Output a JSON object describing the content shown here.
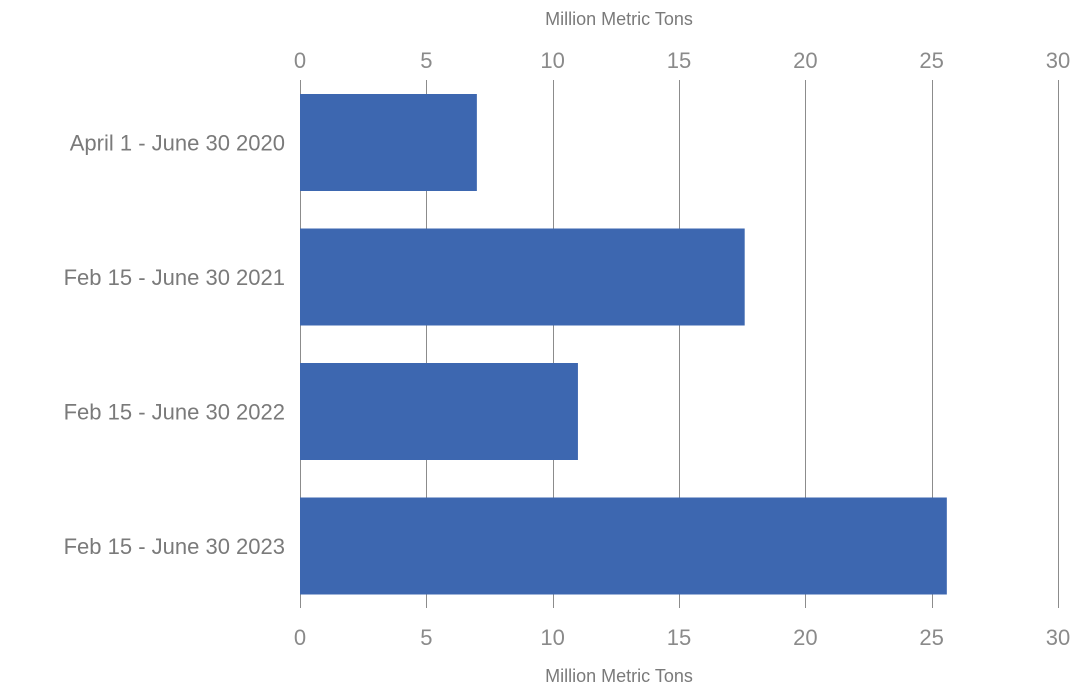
{
  "chart_data": {
    "type": "bar",
    "orientation": "horizontal",
    "categories": [
      "April 1 - June 30 2020",
      "Feb 15 - June 30 2021",
      "Feb 15 - June 30 2022",
      "Feb 15 - June 30 2023"
    ],
    "values": [
      7.0,
      17.6,
      11.0,
      25.6
    ],
    "xlabel_top": "Million Metric Tons",
    "xlabel_bottom": "Million Metric Tons",
    "xlim": [
      0,
      30
    ],
    "xticks": [
      0,
      5,
      10,
      15,
      20,
      25,
      30
    ],
    "grid": true,
    "bar_color": "#3d67b0",
    "grid_color": "#8c8c8c",
    "text_color": "#7a7a7a"
  }
}
